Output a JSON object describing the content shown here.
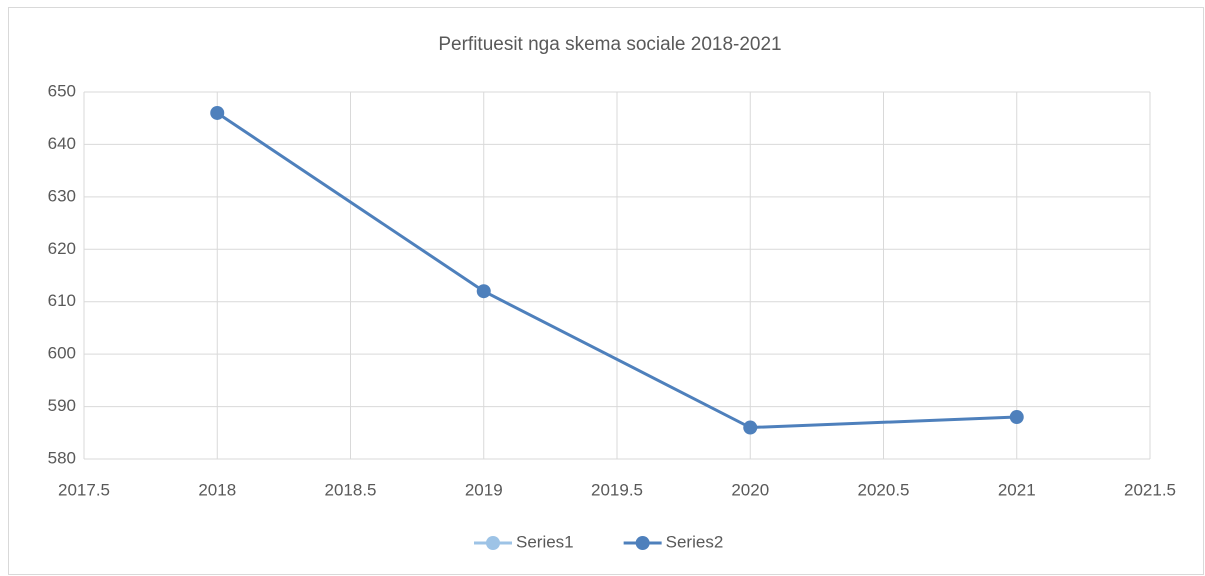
{
  "chart_data": {
    "type": "line",
    "title": "Perfituesit nga skema sociale 2018-2021",
    "x": [
      2018,
      2019,
      2020,
      2021
    ],
    "series": [
      {
        "name": "Series1",
        "color": "#9dc3e6",
        "values": [
          null,
          null,
          null,
          null
        ]
      },
      {
        "name": "Series2",
        "color": "#4e80bc",
        "values": [
          646,
          612,
          586,
          588
        ]
      }
    ],
    "xlim": [
      2017.5,
      2021.5
    ],
    "xticks": [
      2017.5,
      2018,
      2018.5,
      2019,
      2019.5,
      2020,
      2020.5,
      2021,
      2021.5
    ],
    "ylim": [
      580,
      650
    ],
    "yticks": [
      580,
      590,
      600,
      610,
      620,
      630,
      640,
      650
    ],
    "grid": true,
    "legend": "bottom"
  }
}
